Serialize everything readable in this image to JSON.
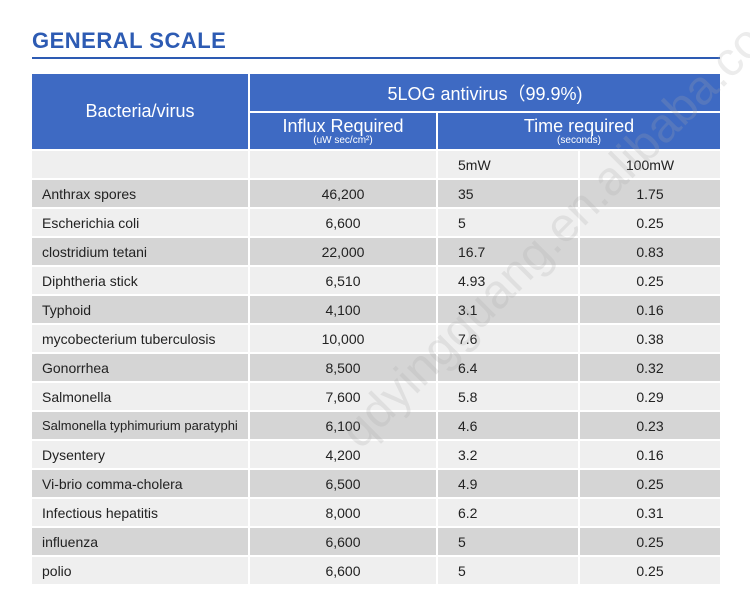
{
  "title": "GENERAL SCALE",
  "header": {
    "col1": "Bacteria/virus",
    "group": "5LOG antivirus（99.9%)",
    "influx": "Influx Required",
    "influx_unit": "(uW sec/cm²)",
    "time": "Time required",
    "time_unit": "(seconds)",
    "sub_5mw": "5mW",
    "sub_100mw": "100mW"
  },
  "rows": [
    {
      "name": "Anthrax spores",
      "influx": "46,200",
      "t5": "35",
      "t100": "1.75"
    },
    {
      "name": "Escherichia coli",
      "influx": "6,600",
      "t5": "5",
      "t100": "0.25"
    },
    {
      "name": "clostridium tetani",
      "influx": "22,000",
      "t5": "16.7",
      "t100": "0.83"
    },
    {
      "name": "Diphtheria stick",
      "influx": "6,510",
      "t5": "4.93",
      "t100": "0.25"
    },
    {
      "name": "Typhoid",
      "influx": "4,100",
      "t5": "3.1",
      "t100": "0.16"
    },
    {
      "name": "mycobecterium tuberculosis",
      "influx": "10,000",
      "t5": "7.6",
      "t100": "0.38"
    },
    {
      "name": "Gonorrhea",
      "influx": "8,500",
      "t5": "6.4",
      "t100": "0.32"
    },
    {
      "name": "Salmonella",
      "influx": "7,600",
      "t5": "5.8",
      "t100": "0.29"
    },
    {
      "name": "Salmonella typhimurium paratyphi",
      "influx": "6,100",
      "t5": "4.6",
      "t100": "0.23"
    },
    {
      "name": "Dysentery",
      "influx": "4,200",
      "t5": "3.2",
      "t100": "0.16"
    },
    {
      "name": "Vi-brio comma-cholera",
      "influx": "6,500",
      "t5": "4.9",
      "t100": "0.25"
    },
    {
      "name": "Infectious hepatitis",
      "influx": "8,000",
      "t5": "6.2",
      "t100": "0.31"
    },
    {
      "name": "influenza",
      "influx": "6,600",
      "t5": "5",
      "t100": "0.25"
    },
    {
      "name": "polio",
      "influx": "6,600",
      "t5": "5",
      "t100": "0.25"
    }
  ],
  "watermark": "qdyingguang.en.alibaba.com"
}
